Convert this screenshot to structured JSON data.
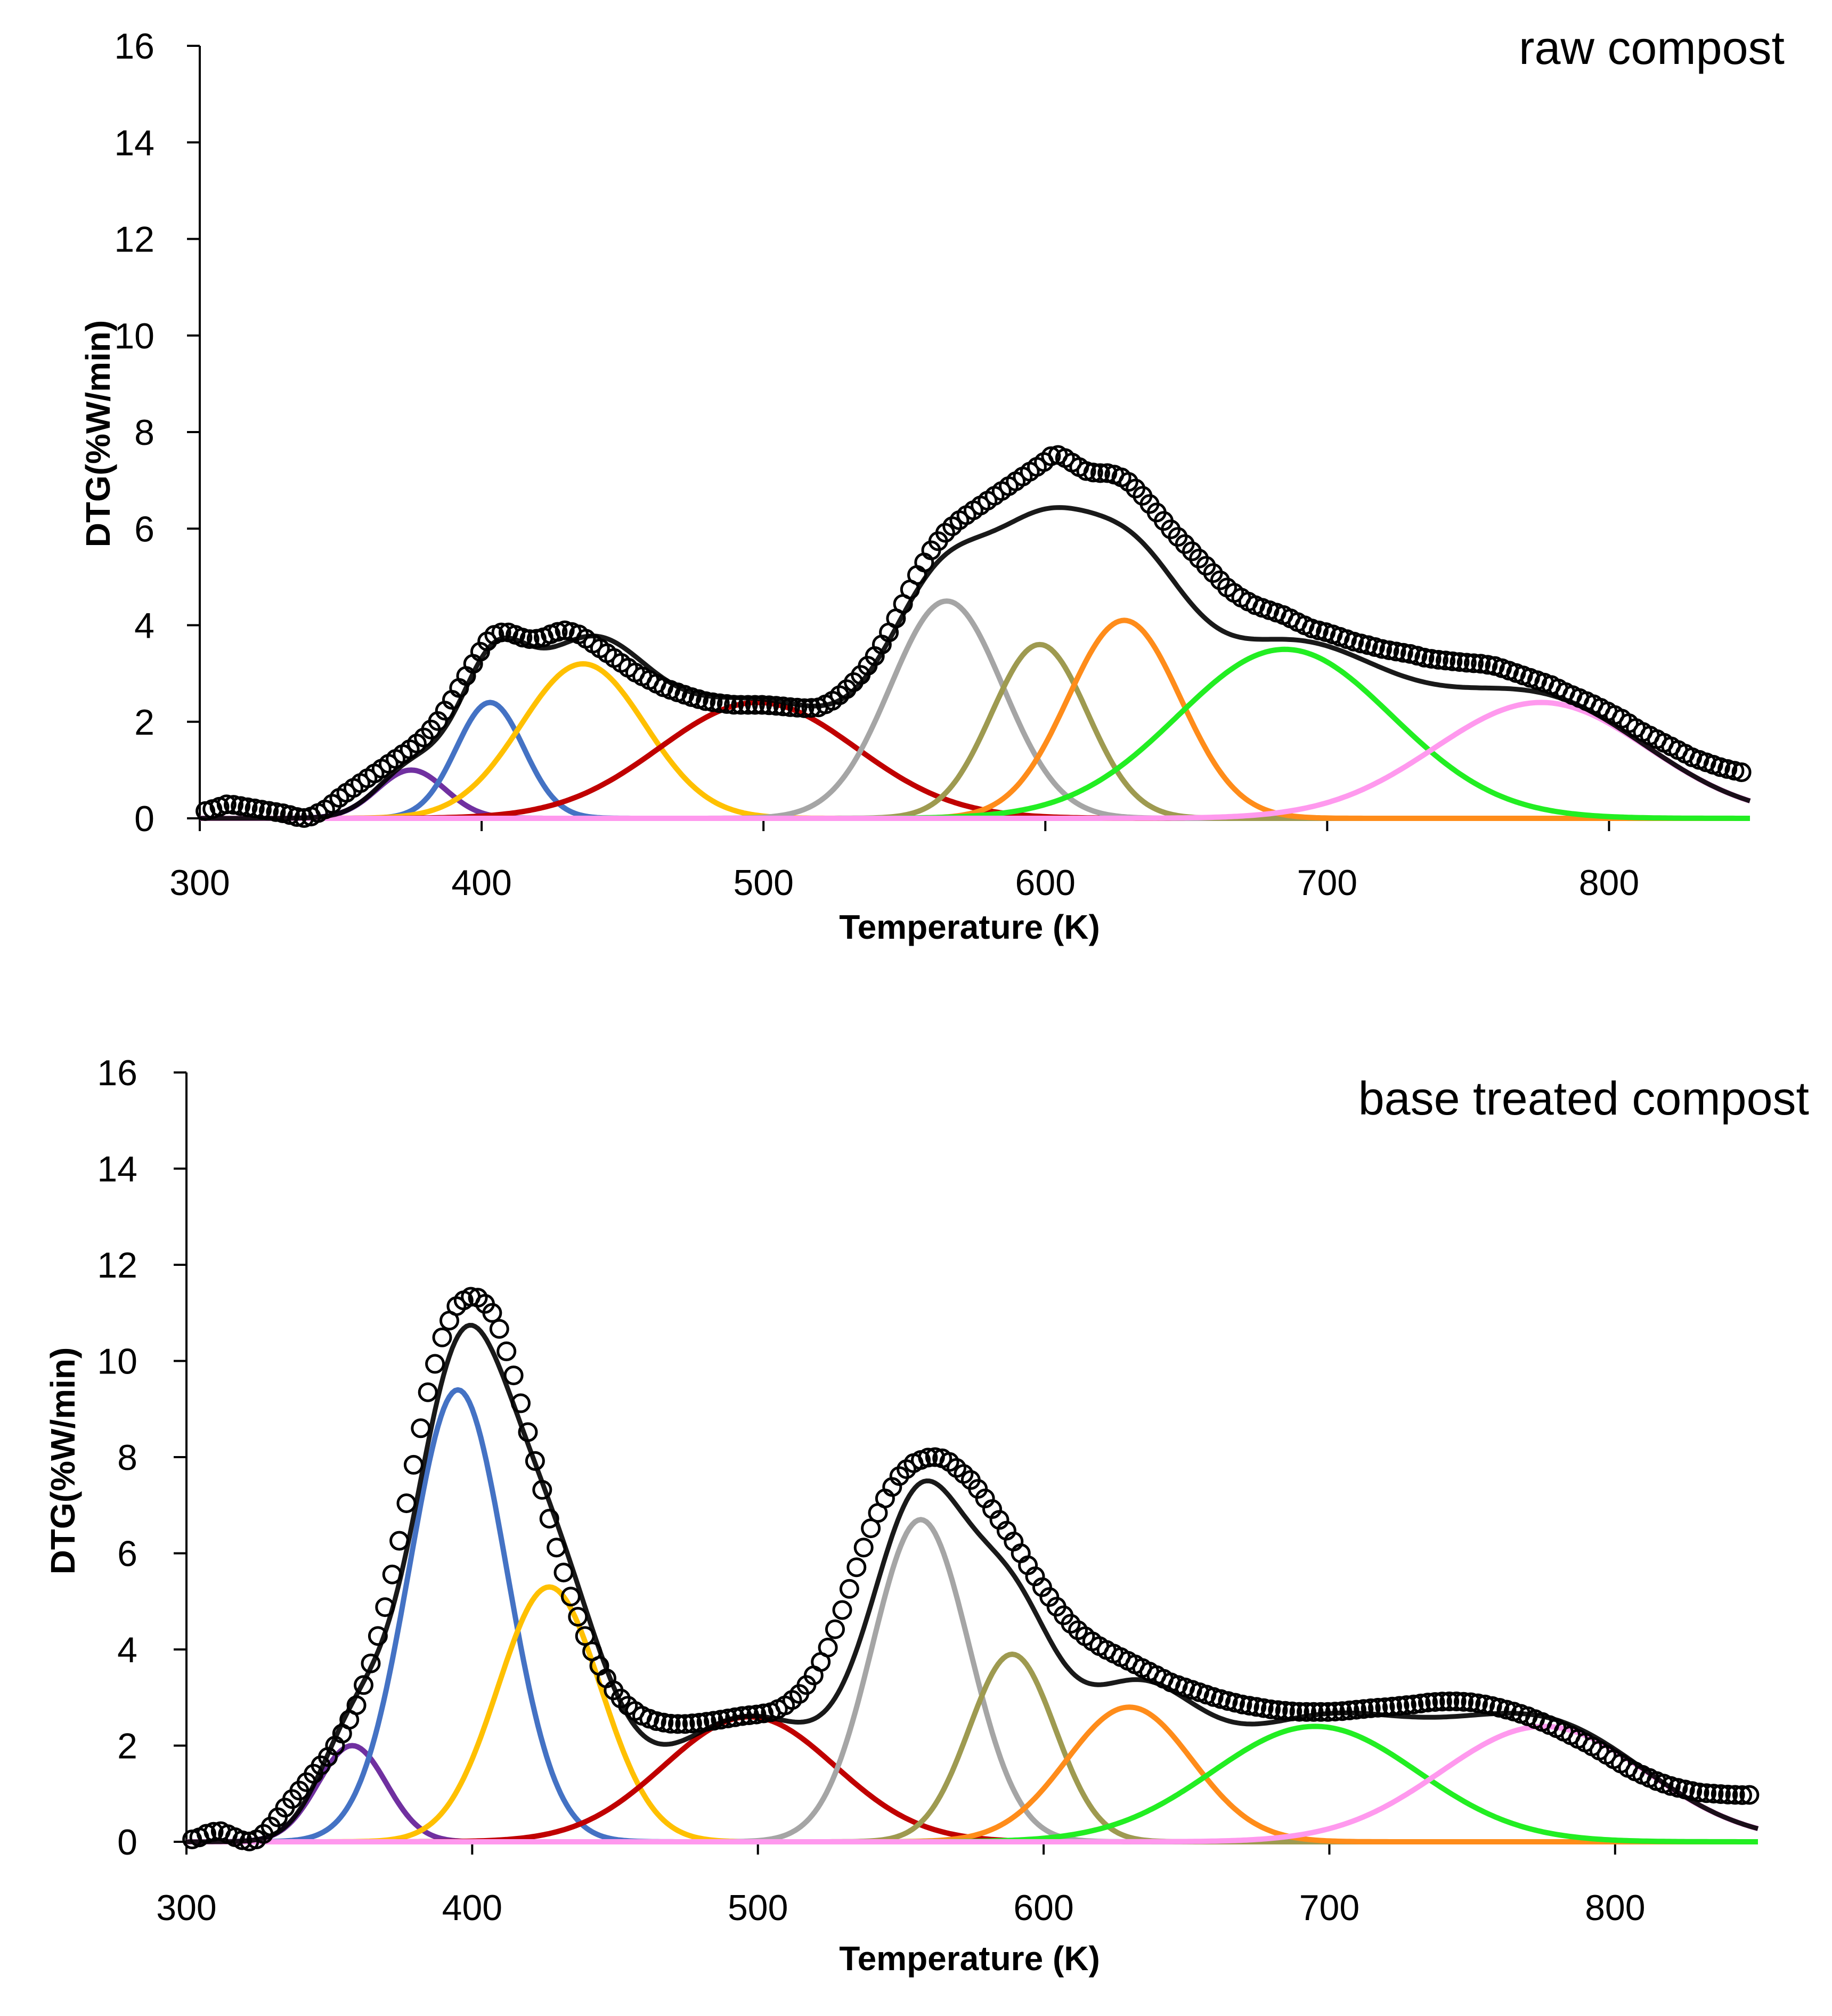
{
  "chart_data": [
    {
      "type": "line",
      "panel_label": "raw compost",
      "xlabel": "Temperature (K)",
      "ylabel": "DTG(%W/min)",
      "xlim": [
        300,
        850
      ],
      "ylim": [
        0,
        16
      ],
      "x_ticks": [
        300,
        400,
        500,
        600,
        700,
        800
      ],
      "y_ticks": [
        0,
        2,
        4,
        6,
        8,
        10,
        12,
        14,
        16
      ],
      "legend": "none",
      "grid": false,
      "components": [
        {
          "color": "#7030a0",
          "center": 375,
          "amplitude": 1.0,
          "width": 12
        },
        {
          "color": "#4472c4",
          "center": 403,
          "amplitude": 2.4,
          "width": 12
        },
        {
          "color": "#ffc000",
          "center": 436,
          "amplitude": 3.2,
          "width": 22
        },
        {
          "color": "#c00000",
          "center": 498,
          "amplitude": 2.4,
          "width": 35
        },
        {
          "color": "#a5a5a5",
          "center": 565,
          "amplitude": 4.5,
          "width": 20
        },
        {
          "color": "#9e9a50",
          "center": 598,
          "amplitude": 3.6,
          "width": 17
        },
        {
          "color": "#ff8c1a",
          "center": 628,
          "amplitude": 4.1,
          "width": 20
        },
        {
          "color": "#22ee22",
          "center": 685,
          "amplitude": 3.5,
          "width": 38
        },
        {
          "color": "#ff99ee",
          "center": 776,
          "amplitude": 2.4,
          "width": 38
        }
      ],
      "measured": {
        "x": [
          302,
          305,
          310,
          315,
          320,
          325,
          330,
          335,
          338,
          340,
          345,
          350,
          355,
          360,
          365,
          370,
          375,
          380,
          385,
          390,
          395,
          400,
          403,
          406,
          410,
          414,
          418,
          422,
          426,
          430,
          435,
          440,
          445,
          450,
          455,
          460,
          465,
          470,
          475,
          480,
          485,
          490,
          495,
          500,
          505,
          510,
          515,
          520,
          525,
          530,
          535,
          540,
          545,
          550,
          555,
          560,
          565,
          570,
          575,
          580,
          585,
          590,
          595,
          600,
          603,
          606,
          610,
          614,
          618,
          622,
          626,
          630,
          635,
          640,
          645,
          650,
          655,
          660,
          665,
          670,
          675,
          680,
          685,
          690,
          695,
          700,
          705,
          710,
          715,
          720,
          725,
          730,
          735,
          740,
          745,
          750,
          755,
          760,
          765,
          770,
          775,
          780,
          785,
          790,
          795,
          800,
          805,
          810,
          815,
          820,
          825,
          830,
          835,
          840,
          845,
          849
        ],
        "y": [
          0.15,
          0.2,
          0.3,
          0.25,
          0.2,
          0.15,
          0.1,
          0.02,
          0.0,
          0.05,
          0.2,
          0.45,
          0.65,
          0.85,
          1.05,
          1.25,
          1.45,
          1.7,
          2.05,
          2.5,
          3.0,
          3.5,
          3.75,
          3.85,
          3.85,
          3.75,
          3.7,
          3.75,
          3.85,
          3.9,
          3.8,
          3.6,
          3.4,
          3.2,
          3.0,
          2.85,
          2.7,
          2.6,
          2.5,
          2.42,
          2.38,
          2.35,
          2.35,
          2.35,
          2.33,
          2.3,
          2.28,
          2.3,
          2.45,
          2.7,
          3.0,
          3.4,
          3.9,
          4.5,
          5.1,
          5.6,
          5.95,
          6.2,
          6.4,
          6.6,
          6.8,
          7.0,
          7.2,
          7.4,
          7.55,
          7.5,
          7.35,
          7.2,
          7.15,
          7.15,
          7.1,
          6.95,
          6.65,
          6.3,
          5.95,
          5.65,
          5.35,
          5.05,
          4.75,
          4.55,
          4.4,
          4.3,
          4.2,
          4.05,
          3.92,
          3.85,
          3.75,
          3.65,
          3.58,
          3.5,
          3.45,
          3.4,
          3.32,
          3.28,
          3.25,
          3.22,
          3.2,
          3.15,
          3.05,
          2.95,
          2.85,
          2.75,
          2.6,
          2.48,
          2.35,
          2.2,
          2.05,
          1.85,
          1.7,
          1.55,
          1.4,
          1.25,
          1.15,
          1.05,
          0.98,
          0.93
        ]
      }
    },
    {
      "type": "line",
      "panel_label": "base treated compost",
      "xlabel": "Temperature (K)",
      "ylabel": "DTG(%W/min)",
      "xlim": [
        300,
        850
      ],
      "ylim": [
        0,
        16
      ],
      "x_ticks": [
        300,
        400,
        500,
        600,
        700,
        800
      ],
      "y_ticks": [
        0,
        2,
        4,
        6,
        8,
        10,
        12,
        14,
        16
      ],
      "legend": "none",
      "grid": false,
      "components": [
        {
          "color": "#7030a0",
          "center": 358,
          "amplitude": 2.0,
          "width": 12
        },
        {
          "color": "#4472c4",
          "center": 395,
          "amplitude": 9.4,
          "width": 17
        },
        {
          "color": "#ffc000",
          "center": 427,
          "amplitude": 5.3,
          "width": 18
        },
        {
          "color": "#c00000",
          "center": 497,
          "amplitude": 2.6,
          "width": 30
        },
        {
          "color": "#a5a5a5",
          "center": 557,
          "amplitude": 6.7,
          "width": 17
        },
        {
          "color": "#9e9a50",
          "center": 589,
          "amplitude": 3.9,
          "width": 15
        },
        {
          "color": "#ff8c1a",
          "center": 630,
          "amplitude": 2.8,
          "width": 22
        },
        {
          "color": "#22ee22",
          "center": 695,
          "amplitude": 2.4,
          "width": 36
        },
        {
          "color": "#ff99ee",
          "center": 775,
          "amplitude": 2.4,
          "width": 36
        }
      ],
      "measured": {
        "x": [
          302,
          305,
          308,
          312,
          316,
          320,
          323,
          326,
          330,
          335,
          340,
          345,
          350,
          355,
          360,
          365,
          370,
          375,
          380,
          385,
          390,
          395,
          400,
          403,
          407,
          410,
          415,
          420,
          425,
          430,
          435,
          440,
          445,
          450,
          455,
          460,
          465,
          470,
          475,
          480,
          485,
          490,
          495,
          500,
          505,
          510,
          515,
          520,
          525,
          530,
          535,
          540,
          545,
          550,
          555,
          560,
          563,
          566,
          570,
          575,
          580,
          585,
          590,
          595,
          600,
          605,
          610,
          615,
          620,
          625,
          630,
          635,
          640,
          645,
          650,
          655,
          660,
          665,
          670,
          675,
          680,
          685,
          690,
          695,
          700,
          705,
          710,
          715,
          720,
          725,
          730,
          735,
          740,
          745,
          750,
          755,
          760,
          765,
          770,
          775,
          780,
          785,
          790,
          795,
          800,
          805,
          810,
          815,
          820,
          825,
          830,
          835,
          840,
          845,
          849
        ],
        "y": [
          0.05,
          0.1,
          0.2,
          0.22,
          0.12,
          0.02,
          0.0,
          0.1,
          0.35,
          0.75,
          1.1,
          1.45,
          1.8,
          2.3,
          2.9,
          3.8,
          5.0,
          6.4,
          8.0,
          9.5,
          10.6,
          11.2,
          11.35,
          11.3,
          11.0,
          10.6,
          9.6,
          8.4,
          7.2,
          6.0,
          5.0,
          4.2,
          3.6,
          3.1,
          2.8,
          2.6,
          2.5,
          2.45,
          2.45,
          2.48,
          2.52,
          2.57,
          2.62,
          2.65,
          2.7,
          2.85,
          3.1,
          3.5,
          4.1,
          4.9,
          5.8,
          6.6,
          7.2,
          7.65,
          7.9,
          8.0,
          8.0,
          7.95,
          7.75,
          7.5,
          7.1,
          6.65,
          6.2,
          5.7,
          5.25,
          4.85,
          4.5,
          4.25,
          4.05,
          3.9,
          3.75,
          3.6,
          3.45,
          3.3,
          3.2,
          3.1,
          3.0,
          2.92,
          2.85,
          2.8,
          2.75,
          2.72,
          2.7,
          2.7,
          2.7,
          2.72,
          2.75,
          2.78,
          2.8,
          2.83,
          2.86,
          2.9,
          2.92,
          2.92,
          2.9,
          2.85,
          2.78,
          2.7,
          2.6,
          2.48,
          2.35,
          2.2,
          2.05,
          1.88,
          1.7,
          1.52,
          1.38,
          1.25,
          1.15,
          1.08,
          1.02,
          1.0,
          0.98,
          0.97,
          0.98
        ]
      }
    }
  ]
}
